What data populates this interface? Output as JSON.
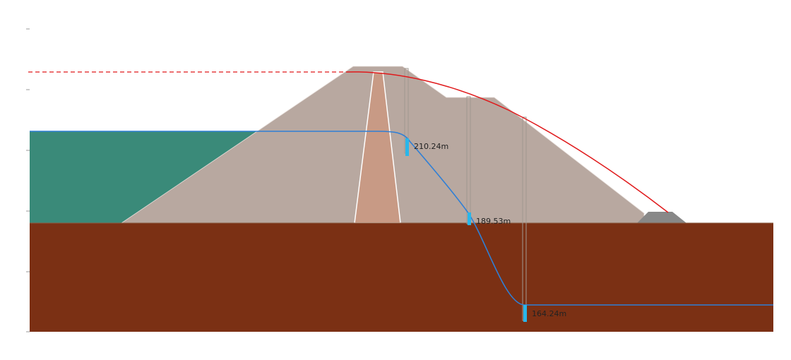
{
  "colors": {
    "water": "#3a8a79",
    "dam_shell": "#b8a8a0",
    "core": "#c89a85",
    "foundation": "#7b3014",
    "toe_drain": "#888888",
    "phreatic_line": "#2f7fd6",
    "slip_line": "#e0191b",
    "piezometer_level": "#29b6ea"
  },
  "piezometers": [
    {
      "label": "210.24m"
    },
    {
      "label": "189.53m"
    },
    {
      "label": "164.24m"
    }
  ]
}
